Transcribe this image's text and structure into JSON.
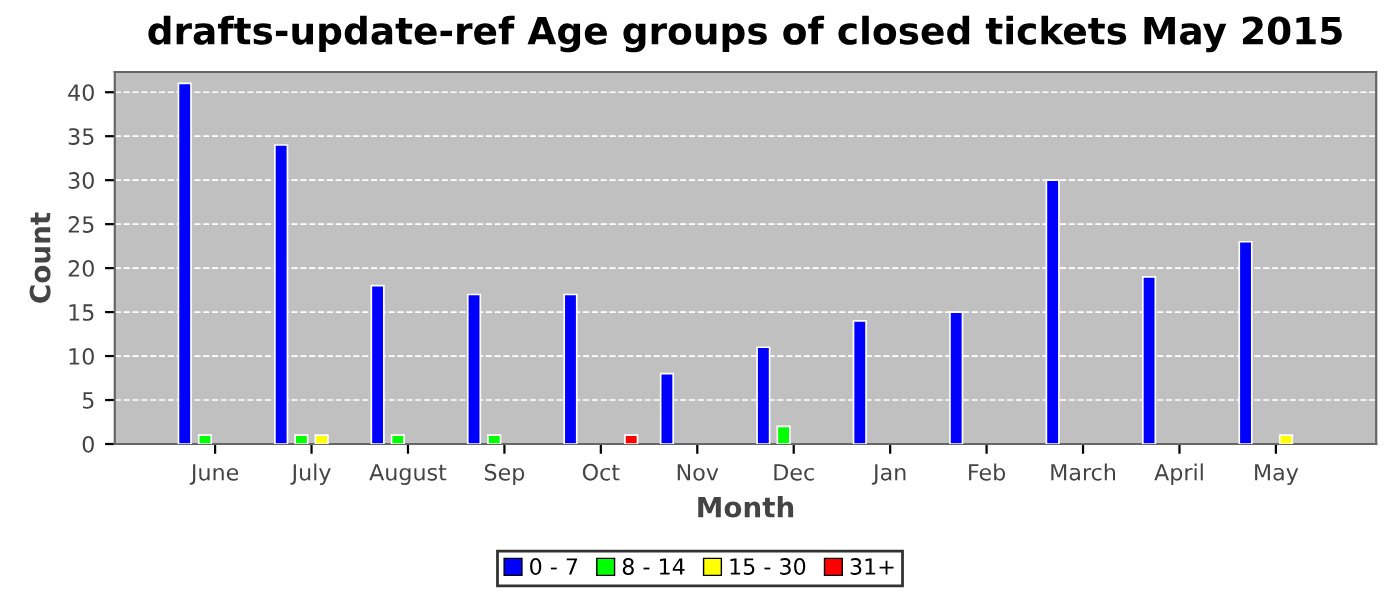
{
  "chart_data": {
    "type": "bar",
    "title": "drafts-update-ref Age groups of closed tickets May 2015",
    "xlabel": "Month",
    "ylabel": "Count",
    "categories": [
      "June",
      "July",
      "August",
      "Sep",
      "Oct",
      "Nov",
      "Dec",
      "Jan",
      "Feb",
      "March",
      "April",
      "May"
    ],
    "series": [
      {
        "name": "0 - 7",
        "color": "#0000ff",
        "values": [
          41,
          34,
          18,
          17,
          17,
          8,
          11,
          14,
          15,
          30,
          19,
          23
        ]
      },
      {
        "name": "8 - 14",
        "color": "#00ff00",
        "values": [
          1,
          1,
          1,
          1,
          0,
          0,
          2,
          0,
          0,
          0,
          0,
          0
        ]
      },
      {
        "name": "15 - 30",
        "color": "#ffff00",
        "values": [
          0,
          1,
          0,
          0,
          0,
          0,
          0,
          0,
          0,
          0,
          0,
          1
        ]
      },
      {
        "name": "31+",
        "color": "#ff0000",
        "values": [
          0,
          0,
          0,
          0,
          1,
          0,
          0,
          0,
          0,
          0,
          0,
          0
        ]
      }
    ],
    "ylim": [
      0,
      42.3
    ],
    "yticks": [
      0,
      5,
      10,
      15,
      20,
      25,
      30,
      35,
      40
    ],
    "grid": "y",
    "legend": "bottom"
  }
}
